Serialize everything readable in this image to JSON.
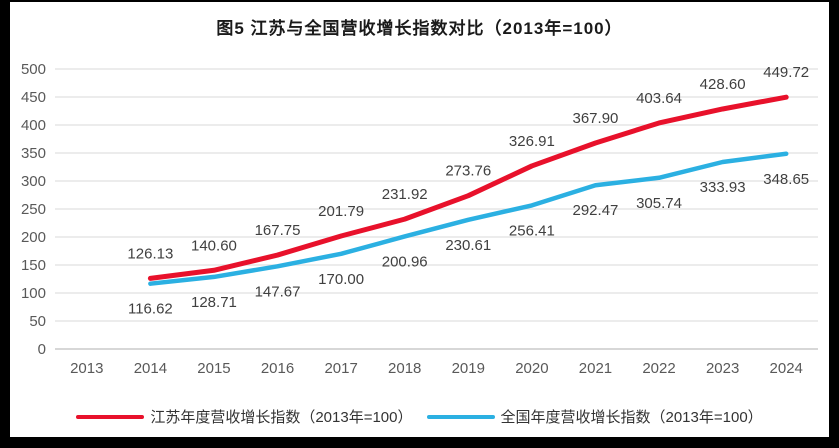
{
  "chart_data": {
    "type": "line",
    "title": "图5  江苏与全国营收增长指数对比（2013年=100）",
    "categories": [
      "2013",
      "2014",
      "2015",
      "2016",
      "2017",
      "2018",
      "2019",
      "2020",
      "2021",
      "2022",
      "2023",
      "2024"
    ],
    "series": [
      {
        "name": "江苏年度营收增长指数（2013年=100）",
        "color": "#e8112b",
        "line_width": 5,
        "label_position": "above",
        "values": [
          null,
          126.13,
          140.6,
          167.75,
          201.79,
          231.92,
          273.76,
          326.91,
          367.9,
          403.64,
          428.6,
          449.72
        ]
      },
      {
        "name": "全国年度营收增长指数（2013年=100）",
        "color": "#2bb0e2",
        "line_width": 4.5,
        "label_position": "below",
        "values": [
          null,
          116.62,
          128.71,
          147.67,
          170.0,
          200.96,
          230.61,
          256.41,
          292.47,
          305.74,
          333.93,
          348.65
        ]
      }
    ],
    "y_ticks": [
      0,
      50,
      100,
      150,
      200,
      250,
      300,
      350,
      400,
      450,
      500
    ],
    "ylim": [
      0,
      500
    ],
    "grid": "horizontal",
    "legend_position": "bottom",
    "colors": {
      "gridline": "#e0e0e0",
      "axis_line": "#bfbfbf",
      "tick_label": "#595959",
      "data_label": "#404040",
      "frame": "#000000",
      "background": "#ffffff"
    }
  }
}
